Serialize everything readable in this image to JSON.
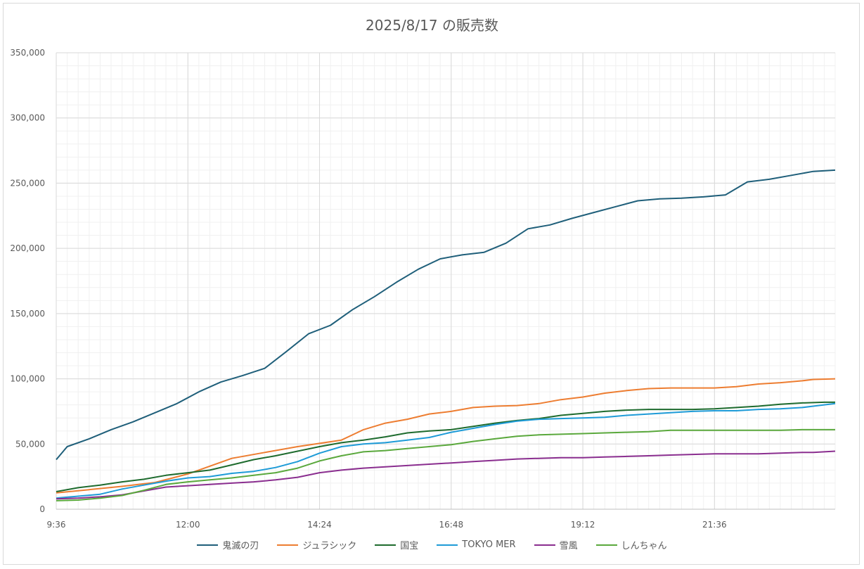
{
  "chart_data": {
    "type": "line",
    "title": "2025/8/17 の販売数",
    "xlabel": "",
    "ylabel": "",
    "ylim": [
      0,
      350000
    ],
    "yticks": [
      0,
      50000,
      100000,
      150000,
      200000,
      250000,
      300000,
      350000
    ],
    "ytick_labels": [
      "0",
      "50,000",
      "100,000",
      "150,000",
      "200,000",
      "250,000",
      "300,000",
      "350,000"
    ],
    "xticks": [
      "9:36",
      "12:00",
      "14:24",
      "16:48",
      "19:12",
      "21:36"
    ],
    "grid": true,
    "legend_position": "bottom",
    "x": [
      "9:36",
      "9:48",
      "10:00",
      "10:12",
      "10:24",
      "10:36",
      "10:48",
      "11:00",
      "11:12",
      "11:24",
      "11:36",
      "11:48",
      "12:00",
      "12:12",
      "12:24",
      "12:36",
      "12:48",
      "13:00",
      "13:12",
      "13:24",
      "13:36",
      "13:48",
      "14:00",
      "14:12",
      "14:24",
      "14:36",
      "14:48",
      "15:00",
      "15:12",
      "15:24",
      "15:36",
      "15:48",
      "16:00",
      "16:12",
      "16:24",
      "16:36",
      "16:48",
      "17:00",
      "17:12",
      "17:24",
      "17:36",
      "17:48",
      "18:00",
      "18:12",
      "18:24",
      "18:36",
      "18:48",
      "19:00",
      "19:12",
      "19:24",
      "19:36",
      "19:48",
      "20:00",
      "20:12",
      "20:24",
      "20:36",
      "20:48",
      "21:00",
      "21:12",
      "21:24",
      "21:36",
      "21:48",
      "22:00",
      "22:12",
      "22:24",
      "22:36",
      "22:48",
      "23:00",
      "23:12",
      "23:24",
      "23:36",
      "23:48"
    ],
    "series_points": [
      {
        "name": "鬼滅の刃",
        "color": "#1f5f7a",
        "points": [
          [
            "9:36",
            38000
          ],
          [
            "9:48",
            48000
          ],
          [
            "10:12",
            54000
          ],
          [
            "10:36",
            61000
          ],
          [
            "11:00",
            67000
          ],
          [
            "11:24",
            74000
          ],
          [
            "11:48",
            81000
          ],
          [
            "12:12",
            90000
          ],
          [
            "12:36",
            97500
          ],
          [
            "13:00",
            102500
          ],
          [
            "13:24",
            108000
          ],
          [
            "13:48",
            121000
          ],
          [
            "14:12",
            134500
          ],
          [
            "14:36",
            141000
          ],
          [
            "15:00",
            153000
          ],
          [
            "15:24",
            163000
          ],
          [
            "15:48",
            174000
          ],
          [
            "16:12",
            184000
          ],
          [
            "16:36",
            192000
          ],
          [
            "17:00",
            195000
          ],
          [
            "17:24",
            197000
          ],
          [
            "17:48",
            204000
          ],
          [
            "18:12",
            215000
          ],
          [
            "18:36",
            218000
          ],
          [
            "19:00",
            223000
          ],
          [
            "19:24",
            227500
          ],
          [
            "19:48",
            232000
          ],
          [
            "20:12",
            236500
          ],
          [
            "20:36",
            238000
          ],
          [
            "21:00",
            238500
          ],
          [
            "21:24",
            239500
          ],
          [
            "21:48",
            241000
          ],
          [
            "22:12",
            251000
          ],
          [
            "22:36",
            253000
          ],
          [
            "23:00",
            256000
          ],
          [
            "23:24",
            259000
          ],
          [
            "23:48",
            260000
          ]
        ]
      },
      {
        "name": "ジュラシック",
        "color": "#ed7d31",
        "points": [
          [
            "9:36",
            12500
          ],
          [
            "10:12",
            15000
          ],
          [
            "10:48",
            17500
          ],
          [
            "11:24",
            20500
          ],
          [
            "12:00",
            27000
          ],
          [
            "12:24",
            33000
          ],
          [
            "12:48",
            39000
          ],
          [
            "13:24",
            43500
          ],
          [
            "14:00",
            48000
          ],
          [
            "14:24",
            50500
          ],
          [
            "14:48",
            53000
          ],
          [
            "15:12",
            61000
          ],
          [
            "15:36",
            66000
          ],
          [
            "16:00",
            69000
          ],
          [
            "16:24",
            73000
          ],
          [
            "16:48",
            75000
          ],
          [
            "17:12",
            78000
          ],
          [
            "17:36",
            79000
          ],
          [
            "18:00",
            79500
          ],
          [
            "18:24",
            81000
          ],
          [
            "18:48",
            84000
          ],
          [
            "19:12",
            86000
          ],
          [
            "19:36",
            89000
          ],
          [
            "20:00",
            91000
          ],
          [
            "20:24",
            92500
          ],
          [
            "20:48",
            93000
          ],
          [
            "21:12",
            93000
          ],
          [
            "21:36",
            93000
          ],
          [
            "22:00",
            94000
          ],
          [
            "22:24",
            96000
          ],
          [
            "22:48",
            97000
          ],
          [
            "23:12",
            98500
          ],
          [
            "23:24",
            99500
          ],
          [
            "23:48",
            100000
          ]
        ]
      },
      {
        "name": "国宝",
        "color": "#1e6b2e",
        "points": [
          [
            "9:36",
            13500
          ],
          [
            "10:00",
            16500
          ],
          [
            "10:24",
            18500
          ],
          [
            "10:48",
            21000
          ],
          [
            "11:12",
            23000
          ],
          [
            "11:36",
            26000
          ],
          [
            "12:00",
            28000
          ],
          [
            "12:24",
            30000
          ],
          [
            "12:48",
            34000
          ],
          [
            "13:12",
            38000
          ],
          [
            "13:36",
            41000
          ],
          [
            "14:00",
            44500
          ],
          [
            "14:24",
            48000
          ],
          [
            "14:48",
            51000
          ],
          [
            "15:12",
            53000
          ],
          [
            "15:36",
            55500
          ],
          [
            "16:00",
            58500
          ],
          [
            "16:24",
            60000
          ],
          [
            "16:48",
            61000
          ],
          [
            "17:12",
            63500
          ],
          [
            "17:36",
            66000
          ],
          [
            "18:00",
            68000
          ],
          [
            "18:24",
            69500
          ],
          [
            "18:48",
            72000
          ],
          [
            "19:12",
            73500
          ],
          [
            "19:36",
            75000
          ],
          [
            "20:00",
            76000
          ],
          [
            "20:24",
            76500
          ],
          [
            "20:48",
            76500
          ],
          [
            "21:12",
            76500
          ],
          [
            "21:36",
            77000
          ],
          [
            "22:00",
            78000
          ],
          [
            "22:24",
            79000
          ],
          [
            "22:48",
            80500
          ],
          [
            "23:12",
            81500
          ],
          [
            "23:36",
            82000
          ],
          [
            "23:48",
            82000
          ]
        ]
      },
      {
        "name": "TOKYO MER",
        "color": "#1e9bd7",
        "points": [
          [
            "9:36",
            8500
          ],
          [
            "10:00",
            10000
          ],
          [
            "10:24",
            11500
          ],
          [
            "10:48",
            15500
          ],
          [
            "11:12",
            18500
          ],
          [
            "11:36",
            21500
          ],
          [
            "12:00",
            24000
          ],
          [
            "12:24",
            25000
          ],
          [
            "12:48",
            27500
          ],
          [
            "13:12",
            29000
          ],
          [
            "13:36",
            32000
          ],
          [
            "14:00",
            36500
          ],
          [
            "14:24",
            43000
          ],
          [
            "14:48",
            48000
          ],
          [
            "15:12",
            50000
          ],
          [
            "15:36",
            51000
          ],
          [
            "16:00",
            53000
          ],
          [
            "16:24",
            55000
          ],
          [
            "16:48",
            59000
          ],
          [
            "17:12",
            62000
          ],
          [
            "17:36",
            65000
          ],
          [
            "18:00",
            67500
          ],
          [
            "18:24",
            69000
          ],
          [
            "18:48",
            69500
          ],
          [
            "19:12",
            70000
          ],
          [
            "19:36",
            70500
          ],
          [
            "20:00",
            72000
          ],
          [
            "20:24",
            73000
          ],
          [
            "20:48",
            74000
          ],
          [
            "21:12",
            75000
          ],
          [
            "21:36",
            75500
          ],
          [
            "22:00",
            75500
          ],
          [
            "22:24",
            76500
          ],
          [
            "22:48",
            77000
          ],
          [
            "23:12",
            78000
          ],
          [
            "23:24",
            79000
          ],
          [
            "23:48",
            81000
          ]
        ]
      },
      {
        "name": "雪風",
        "color": "#8a2e8f",
        "points": [
          [
            "9:36",
            8000
          ],
          [
            "10:00",
            8500
          ],
          [
            "10:24",
            9500
          ],
          [
            "10:48",
            11000
          ],
          [
            "11:12",
            14000
          ],
          [
            "11:36",
            17000
          ],
          [
            "12:00",
            18000
          ],
          [
            "12:24",
            19000
          ],
          [
            "12:48",
            20000
          ],
          [
            "13:12",
            21000
          ],
          [
            "13:36",
            22500
          ],
          [
            "14:00",
            24500
          ],
          [
            "14:24",
            28000
          ],
          [
            "14:48",
            30000
          ],
          [
            "15:12",
            31500
          ],
          [
            "15:36",
            32500
          ],
          [
            "16:00",
            33500
          ],
          [
            "16:24",
            34500
          ],
          [
            "16:48",
            35500
          ],
          [
            "17:12",
            36500
          ],
          [
            "17:36",
            37500
          ],
          [
            "18:00",
            38500
          ],
          [
            "18:24",
            39000
          ],
          [
            "18:48",
            39500
          ],
          [
            "19:12",
            39500
          ],
          [
            "19:36",
            40000
          ],
          [
            "20:00",
            40500
          ],
          [
            "20:24",
            41000
          ],
          [
            "20:48",
            41500
          ],
          [
            "21:12",
            42000
          ],
          [
            "21:36",
            42500
          ],
          [
            "22:00",
            42500
          ],
          [
            "22:24",
            42500
          ],
          [
            "22:48",
            43000
          ],
          [
            "23:12",
            43500
          ],
          [
            "23:24",
            43500
          ],
          [
            "23:48",
            44500
          ]
        ]
      },
      {
        "name": "しんちゃん",
        "color": "#5aa83c",
        "points": [
          [
            "9:36",
            6500
          ],
          [
            "10:00",
            7000
          ],
          [
            "10:24",
            8500
          ],
          [
            "10:48",
            10500
          ],
          [
            "11:12",
            14500
          ],
          [
            "11:36",
            19000
          ],
          [
            "12:00",
            21000
          ],
          [
            "12:24",
            22500
          ],
          [
            "12:48",
            24000
          ],
          [
            "13:12",
            26000
          ],
          [
            "13:36",
            28000
          ],
          [
            "14:00",
            31500
          ],
          [
            "14:24",
            37000
          ],
          [
            "14:48",
            41000
          ],
          [
            "15:12",
            44000
          ],
          [
            "15:36",
            45000
          ],
          [
            "16:00",
            46500
          ],
          [
            "16:24",
            48000
          ],
          [
            "16:48",
            49500
          ],
          [
            "17:12",
            52000
          ],
          [
            "17:36",
            54000
          ],
          [
            "18:00",
            56000
          ],
          [
            "18:24",
            57000
          ],
          [
            "18:48",
            57500
          ],
          [
            "19:12",
            58000
          ],
          [
            "19:36",
            58500
          ],
          [
            "20:00",
            59000
          ],
          [
            "20:24",
            59500
          ],
          [
            "20:48",
            60500
          ],
          [
            "21:12",
            60500
          ],
          [
            "21:36",
            60500
          ],
          [
            "22:00",
            60500
          ],
          [
            "22:24",
            60500
          ],
          [
            "22:48",
            60500
          ],
          [
            "23:12",
            61000
          ],
          [
            "23:36",
            61000
          ],
          [
            "23:48",
            61000
          ]
        ]
      }
    ]
  }
}
